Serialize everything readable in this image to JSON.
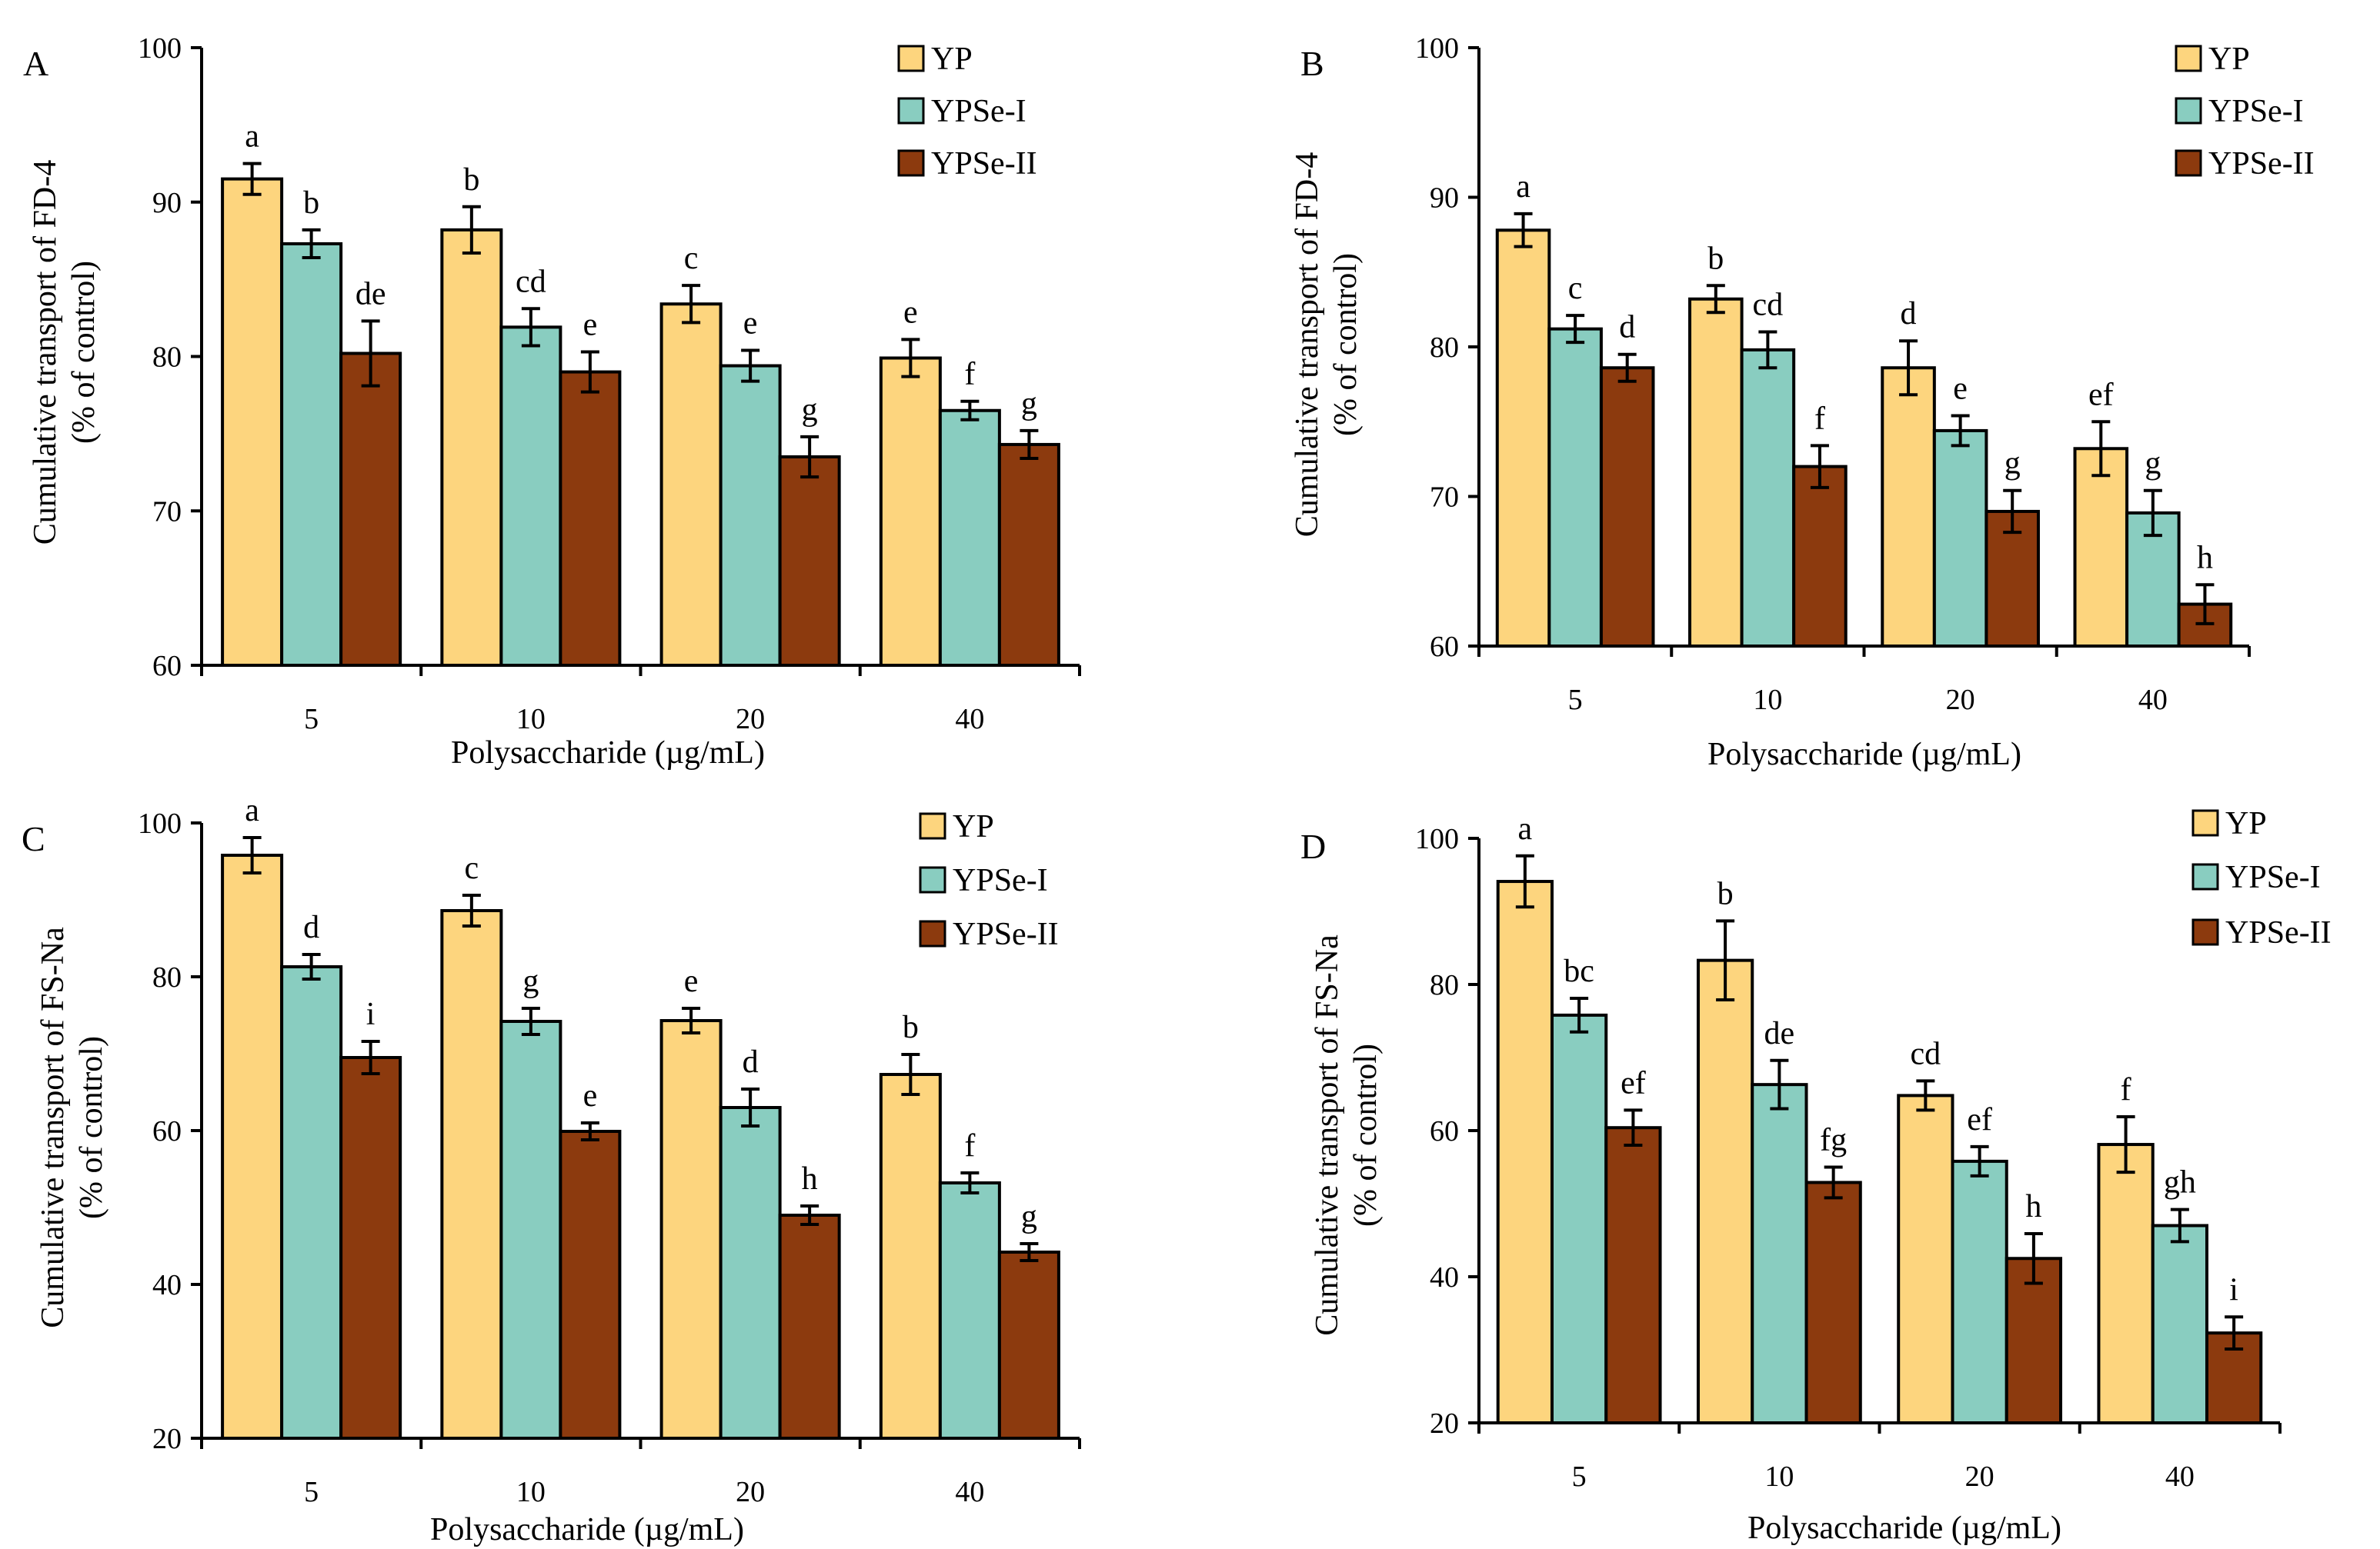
{
  "figure": {
    "colors": {
      "YP": "#FDD57E",
      "YPSe-I": "#89CDC0",
      "YPSe-II": "#8C3A0E",
      "stroke": "#000000"
    }
  },
  "chart_data": [
    {
      "panel": "A",
      "type": "bar",
      "ylabel_line1": "Cumulative transport of FD-4",
      "ylabel_line2": "(% of control)",
      "xlabel": "Polysaccharide (µg/mL)",
      "ylim": [
        60,
        100
      ],
      "yticks": [
        "60",
        "70",
        "80",
        "90",
        "100"
      ],
      "categories": [
        "5",
        "10",
        "20",
        "40"
      ],
      "series": [
        {
          "name": "YP",
          "values": [
            91.5,
            88.2,
            83.4,
            79.9
          ],
          "errors": [
            1.0,
            1.5,
            1.2,
            1.2
          ],
          "labels": [
            "a",
            "b",
            "c",
            "e"
          ]
        },
        {
          "name": "YPSe-I",
          "values": [
            87.3,
            81.9,
            79.4,
            76.5
          ],
          "errors": [
            0.9,
            1.2,
            1.0,
            0.6
          ],
          "labels": [
            "b",
            "cd",
            "e",
            "f"
          ]
        },
        {
          "name": "YPSe-II",
          "values": [
            80.2,
            79.0,
            73.5,
            74.3
          ],
          "errors": [
            2.1,
            1.3,
            1.3,
            0.9
          ],
          "labels": [
            "de",
            "e",
            "g",
            "g"
          ]
        }
      ]
    },
    {
      "panel": "B",
      "type": "bar",
      "ylabel_line1": "Cumulative transport of FD-4",
      "ylabel_line2": "(% of control)",
      "xlabel": "Polysaccharide (µg/mL)",
      "ylim": [
        60,
        100
      ],
      "yticks": [
        "60",
        "70",
        "80",
        "90",
        "100"
      ],
      "categories": [
        "5",
        "10",
        "20",
        "40"
      ],
      "series": [
        {
          "name": "YP",
          "values": [
            87.8,
            83.2,
            78.6,
            73.2
          ],
          "errors": [
            1.1,
            0.9,
            1.8,
            1.8
          ],
          "labels": [
            "a",
            "b",
            "d",
            "ef"
          ]
        },
        {
          "name": "YPSe-I",
          "values": [
            81.2,
            79.8,
            74.4,
            68.9
          ],
          "errors": [
            0.9,
            1.2,
            1.0,
            1.5
          ],
          "labels": [
            "c",
            "cd",
            "e",
            "g"
          ]
        },
        {
          "name": "YPSe-II",
          "values": [
            78.6,
            72.0,
            69.0,
            62.8
          ],
          "errors": [
            0.9,
            1.4,
            1.4,
            1.3
          ],
          "labels": [
            "d",
            "f",
            "g",
            "h"
          ]
        }
      ]
    },
    {
      "panel": "C",
      "type": "bar",
      "ylabel_line1": "Cumulative transport of FS-Na",
      "ylabel_line2": "(% of control)",
      "xlabel": "Polysaccharide (µg/mL)",
      "ylim": [
        20,
        100
      ],
      "yticks": [
        "20",
        "40",
        "60",
        "80",
        "100"
      ],
      "categories": [
        "5",
        "10",
        "20",
        "40"
      ],
      "series": [
        {
          "name": "YP",
          "values": [
            95.8,
            88.6,
            74.3,
            67.3
          ],
          "errors": [
            2.3,
            2.0,
            1.6,
            2.6
          ],
          "labels": [
            "a",
            "c",
            "e",
            "b"
          ]
        },
        {
          "name": "YPSe-I",
          "values": [
            81.3,
            74.2,
            63.0,
            53.2
          ],
          "errors": [
            1.6,
            1.7,
            2.4,
            1.3
          ],
          "labels": [
            "d",
            "g",
            "d",
            "f"
          ]
        },
        {
          "name": "YPSe-II",
          "values": [
            69.5,
            59.9,
            49.0,
            44.2
          ],
          "errors": [
            2.1,
            1.1,
            1.2,
            1.1
          ],
          "labels": [
            "i",
            "e",
            "h",
            "g"
          ]
        }
      ]
    },
    {
      "panel": "D",
      "type": "bar",
      "ylabel_line1": "Cumulative transport of FS-Na",
      "ylabel_line2": "(% of control)",
      "xlabel": "Polysaccharide (µg/mL)",
      "ylim": [
        20,
        100
      ],
      "yticks": [
        "20",
        "40",
        "60",
        "80",
        "100"
      ],
      "categories": [
        "5",
        "10",
        "20",
        "40"
      ],
      "series": [
        {
          "name": "YP",
          "values": [
            94.1,
            83.3,
            64.8,
            58.1
          ],
          "errors": [
            3.5,
            5.4,
            2.0,
            3.8
          ],
          "labels": [
            "a",
            "b",
            "cd",
            "f"
          ]
        },
        {
          "name": "YPSe-I",
          "values": [
            75.8,
            66.3,
            55.8,
            47.0
          ],
          "errors": [
            2.3,
            3.3,
            2.0,
            2.2
          ],
          "labels": [
            "bc",
            "de",
            "ef",
            "gh"
          ]
        },
        {
          "name": "YPSe-II",
          "values": [
            60.4,
            52.9,
            42.5,
            32.3
          ],
          "errors": [
            2.4,
            2.1,
            3.4,
            2.2
          ],
          "labels": [
            "ef",
            "fg",
            "h",
            "i"
          ]
        }
      ]
    }
  ]
}
